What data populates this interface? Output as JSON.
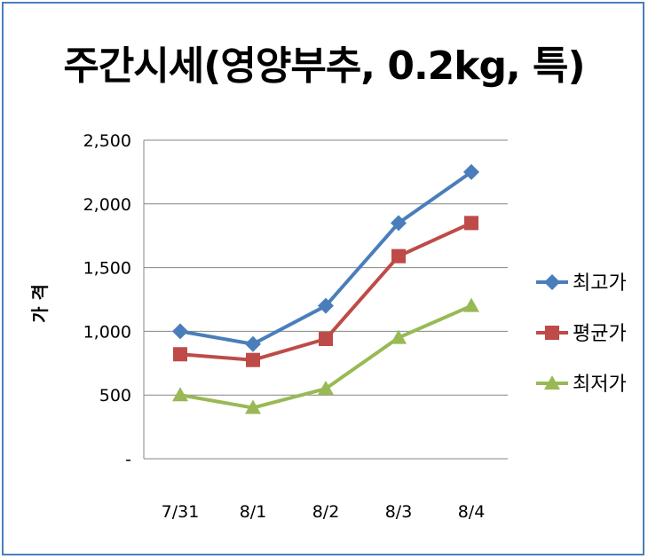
{
  "chart_data": {
    "type": "line",
    "title": "주간시세(영양부추, 0.2kg, 특)",
    "xlabel": "",
    "ylabel": "가 격",
    "categories": [
      "7/31",
      "8/1",
      "8/2",
      "8/3",
      "8/4"
    ],
    "ylim": [
      0,
      2500
    ],
    "yticks": [
      0,
      500,
      1000,
      1500,
      2000,
      2500
    ],
    "ytick_labels": [
      "-",
      "500",
      "1,000",
      "1,500",
      "2,000",
      "2,500"
    ],
    "grid": true,
    "legend": "right",
    "series": [
      {
        "name": "최고가",
        "values": [
          1000,
          900,
          1200,
          1850,
          2250
        ],
        "color": "#4a7ebb",
        "marker": "diamond"
      },
      {
        "name": "평균가",
        "values": [
          820,
          775,
          940,
          1590,
          1850
        ],
        "color": "#be4b48",
        "marker": "square"
      },
      {
        "name": "최저가",
        "values": [
          500,
          400,
          550,
          950,
          1200
        ],
        "color": "#98b954",
        "marker": "triangle"
      }
    ]
  }
}
